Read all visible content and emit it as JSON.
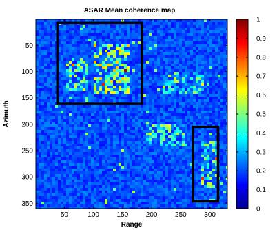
{
  "chart_data": {
    "type": "heatmap",
    "title": "ASAR Mean coherence map",
    "xlabel": "Range",
    "ylabel": "Azimuth",
    "xlim": [
      1,
      330
    ],
    "ylim": [
      1,
      360
    ],
    "x_ticks": [
      50,
      100,
      150,
      200,
      250,
      300
    ],
    "y_ticks": [
      50,
      100,
      150,
      200,
      250,
      300,
      350
    ],
    "y_direction": "reversed",
    "colormap": "jet",
    "colorbar": {
      "range": [
        0,
        1
      ],
      "ticks": [
        "0",
        "0.1",
        "0.2",
        "0.3",
        "0.4",
        "0.5",
        "0.6",
        "0.7",
        "0.8",
        "0.9",
        "1"
      ]
    },
    "background_level": 0.2,
    "bright_regions": [
      {
        "range": [
          100,
          160
        ],
        "azimuth": [
          50,
          140
        ],
        "level": 0.45
      },
      {
        "range": [
          55,
          90
        ],
        "azimuth": [
          75,
          135
        ],
        "level": 0.35
      },
      {
        "range": [
          190,
          260
        ],
        "azimuth": [
          200,
          240
        ],
        "level": 0.35
      },
      {
        "range": [
          220,
          290
        ],
        "azimuth": [
          100,
          140
        ],
        "level": 0.33
      },
      {
        "range": [
          285,
          315
        ],
        "azimuth": [
          230,
          320
        ],
        "level": 0.35
      }
    ],
    "highlight_boxes": [
      {
        "range": [
          38,
          183
        ],
        "azimuth": [
          8,
          161
        ]
      },
      {
        "range": [
          271,
          314
        ],
        "azimuth": [
          205,
          346
        ]
      }
    ]
  }
}
